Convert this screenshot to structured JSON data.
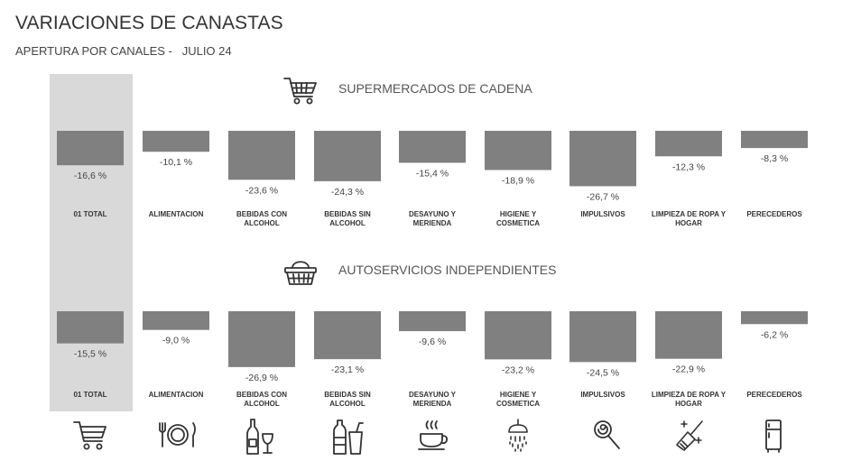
{
  "header": {
    "title": "VARIACIONES DE CANASTAS",
    "subtitle": "APERTURA POR CANALES -   JULIO 24"
  },
  "icons": {
    "section_icons": [
      "shopping-cart-icon",
      "shopping-basket-icon"
    ],
    "category_icons": [
      "shopping-cart-icon",
      "fork-plate-knife-icon",
      "bottle-glass-icon",
      "bottles-cup-icon",
      "coffee-cup-icon",
      "shower-icon",
      "lollipop-icon",
      "broom-sparkles-icon",
      "refrigerator-icon"
    ]
  },
  "colors": {
    "bar": "#808080",
    "highlight": "#d9d9d9",
    "text": "#333333"
  },
  "chart_data": [
    {
      "type": "bar",
      "title": "SUPERMERCADOS DE CADENA",
      "categories": [
        "01 TOTAL",
        "ALIMENTACION",
        "BEBIDAS CON ALCOHOL",
        "BEBIDAS SIN ALCOHOL",
        "DESAYUNO Y MERIENDA",
        "HIGIENE Y COSMETICA",
        "IMPULSIVOS",
        "LIMPIEZA DE ROPA Y HOGAR",
        "PERECEDEROS"
      ],
      "values": [
        -16.6,
        -10.1,
        -23.6,
        -24.3,
        -15.4,
        -18.9,
        -26.7,
        -12.3,
        -8.3
      ],
      "labels": [
        "-16,6 %",
        "-10,1 %",
        "-23,6 %",
        "-24,3 %",
        "-15,4 %",
        "-18,9 %",
        "-26,7 %",
        "-12,3 %",
        "-8,3 %"
      ]
    },
    {
      "type": "bar",
      "title": "AUTOSERVICIOS INDEPENDIENTES",
      "categories": [
        "01 TOTAL",
        "ALIMENTACION",
        "BEBIDAS CON ALCOHOL",
        "BEBIDAS SIN ALCOHOL",
        "DESAYUNO Y MERIENDA",
        "HIGIENE Y COSMETICA",
        "IMPULSIVOS",
        "LIMPIEZA DE ROPA Y HOGAR",
        "PERECEDEROS"
      ],
      "values": [
        -15.5,
        -9.0,
        -26.9,
        -23.1,
        -9.6,
        -23.2,
        -24.5,
        -22.9,
        -6.2
      ],
      "labels": [
        "-15,5 %",
        "-9,0 %",
        "-26,9 %",
        "-23,1 %",
        "-9,6 %",
        "-23,2 %",
        "-24,5 %",
        "-22,9 %",
        "-6,2 %"
      ]
    }
  ]
}
